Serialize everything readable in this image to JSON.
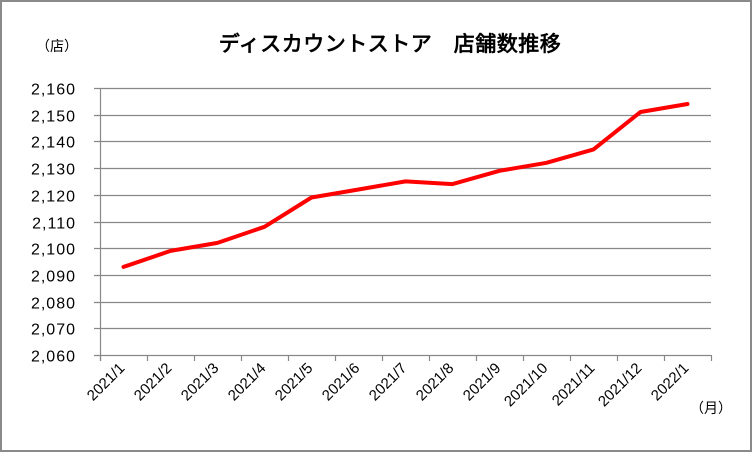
{
  "chart": {
    "title": "ディスカウントストア　店舗数推移",
    "y_unit": "（店）",
    "x_unit": "（月）"
  },
  "colors": {
    "line": "#FF0000",
    "grid": "#888888",
    "border": "#8A8A8A"
  },
  "chart_data": {
    "type": "line",
    "title": "ディスカウントストア　店舗数推移",
    "xlabel": "（月）",
    "ylabel": "（店）",
    "categories": [
      "2021/1",
      "2021/2",
      "2021/3",
      "2021/4",
      "2021/5",
      "2021/6",
      "2021/7",
      "2021/8",
      "2021/9",
      "2021/10",
      "2021/11",
      "2021/12",
      "2022/1"
    ],
    "series": [
      {
        "name": "店舗数",
        "values": [
          2093,
          2099,
          2102,
          2108,
          2119,
          2122,
          2125,
          2124,
          2129,
          2132,
          2137,
          2151,
          2154
        ]
      }
    ],
    "ylim": [
      2060,
      2160
    ],
    "yticks": [
      2060,
      2070,
      2080,
      2090,
      2100,
      2110,
      2120,
      2130,
      2140,
      2150,
      2160
    ],
    "ytick_labels": [
      "2,060",
      "2,070",
      "2,080",
      "2,090",
      "2,100",
      "2,110",
      "2,120",
      "2,130",
      "2,140",
      "2,150",
      "2,160"
    ],
    "grid": true,
    "legend": "none"
  }
}
